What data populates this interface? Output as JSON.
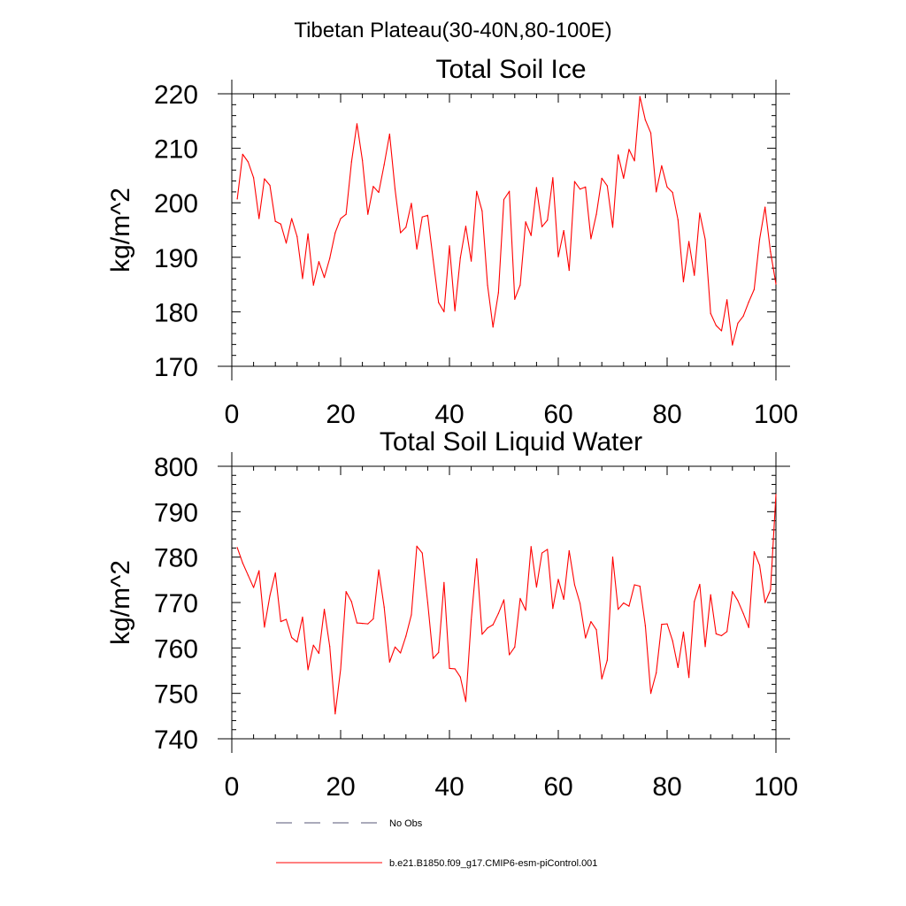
{
  "figure_title": "Tibetan Plateau(30-40N,80-100E)",
  "legend": {
    "placement": "bottom",
    "entries": [
      {
        "label": "No Obs",
        "style": "dashed",
        "color": "#555577"
      },
      {
        "label": "b.e21.B1850.f09_g17.CMIP6-esm-piControl.001",
        "style": "solid",
        "color": "#ff0000"
      }
    ]
  },
  "chart_data": [
    {
      "type": "line",
      "title": "Total Soil Ice",
      "xlabel": "",
      "ylabel": "kg/m^2",
      "xlim": [
        0,
        100
      ],
      "ylim": [
        170,
        220
      ],
      "xticks": [
        0,
        20,
        40,
        60,
        80,
        100
      ],
      "yticks": [
        170,
        180,
        190,
        200,
        210,
        220
      ],
      "grid": false,
      "series": [
        {
          "color": "#ff0000",
          "x": [
            1,
            2,
            3,
            4,
            5,
            6,
            7,
            8,
            9,
            10,
            11,
            12,
            13,
            14,
            15,
            16,
            17,
            18,
            19,
            20,
            21,
            22,
            23,
            24,
            25,
            26,
            27,
            28,
            29,
            30,
            31,
            32,
            33,
            34,
            35,
            36,
            37,
            38,
            39,
            40,
            41,
            42,
            43,
            44,
            45,
            46,
            47,
            48,
            49,
            50,
            51,
            52,
            53,
            54,
            55,
            56,
            57,
            58,
            59,
            60,
            61,
            62,
            63,
            64,
            65,
            66,
            67,
            68,
            69,
            70,
            71,
            72,
            73,
            74,
            75,
            76,
            77,
            78,
            79,
            80,
            81,
            82,
            83,
            84,
            85,
            86,
            87,
            88,
            89,
            90,
            91,
            92,
            93,
            94,
            95,
            96,
            97,
            98,
            99,
            100
          ],
          "values": [
            200.7,
            208.9,
            207.5,
            204.6,
            197.1,
            204.4,
            203.2,
            196.6,
            196.1,
            192.6,
            197.1,
            193.8,
            186.1,
            194.3,
            184.9,
            189.2,
            186.3,
            189.8,
            194.5,
            197.1,
            197.9,
            207.5,
            214.5,
            207.8,
            197.9,
            203.0,
            201.9,
            207.0,
            212.6,
            202.5,
            194.5,
            195.5,
            199.9,
            191.5,
            197.4,
            197.7,
            189.6,
            181.7,
            180.0,
            192.1,
            180.2,
            189.9,
            195.7,
            189.3,
            202.1,
            198.5,
            184.9,
            177.2,
            183.5,
            200.6,
            202.1,
            182.3,
            184.9,
            196.5,
            194.0,
            202.8,
            195.6,
            196.8,
            204.6,
            190.1,
            194.9,
            187.6,
            203.9,
            202.5,
            202.9,
            193.4,
            197.9,
            204.5,
            203.1,
            195.5,
            208.8,
            204.5,
            209.8,
            207.7,
            219.5,
            215.2,
            212.8,
            202.0,
            206.8,
            202.9,
            201.9,
            196.9,
            185.5,
            192.9,
            186.7,
            198.1,
            193.3,
            179.7,
            177.5,
            176.5,
            182.2,
            173.9,
            177.9,
            179.2,
            181.8,
            184.1,
            193.3,
            199.2,
            191.0,
            185.1
          ]
        }
      ]
    },
    {
      "type": "line",
      "title": "Total Soil Liquid Water",
      "xlabel": "",
      "ylabel": "kg/m^2",
      "xlim": [
        0,
        100
      ],
      "ylim": [
        740,
        800
      ],
      "xticks": [
        0,
        20,
        40,
        60,
        80,
        100
      ],
      "yticks": [
        740,
        750,
        760,
        770,
        780,
        790,
        800
      ],
      "grid": false,
      "series": [
        {
          "color": "#ff0000",
          "x": [
            1,
            2,
            3,
            4,
            5,
            6,
            7,
            8,
            9,
            10,
            11,
            12,
            13,
            14,
            15,
            16,
            17,
            18,
            19,
            20,
            21,
            22,
            23,
            24,
            25,
            26,
            27,
            28,
            29,
            30,
            31,
            32,
            33,
            34,
            35,
            36,
            37,
            38,
            39,
            40,
            41,
            42,
            43,
            44,
            45,
            46,
            47,
            48,
            49,
            50,
            51,
            52,
            53,
            54,
            55,
            56,
            57,
            58,
            59,
            60,
            61,
            62,
            63,
            64,
            65,
            66,
            67,
            68,
            69,
            70,
            71,
            72,
            73,
            74,
            75,
            76,
            77,
            78,
            79,
            80,
            81,
            82,
            83,
            84,
            85,
            86,
            87,
            88,
            89,
            90,
            91,
            92,
            93,
            94,
            95,
            96,
            97,
            98,
            99,
            100
          ],
          "values": [
            782.1,
            778.7,
            776.0,
            773.3,
            777.0,
            764.6,
            771.5,
            776.5,
            765.8,
            766.3,
            762.3,
            761.3,
            766.8,
            755.2,
            760.6,
            758.8,
            768.5,
            760.3,
            745.5,
            755.3,
            772.4,
            770.2,
            765.5,
            765.4,
            765.3,
            766.4,
            777.2,
            769.0,
            756.9,
            760.2,
            758.9,
            762.6,
            767.3,
            782.4,
            780.9,
            770.0,
            757.7,
            759.0,
            774.4,
            755.5,
            755.4,
            753.6,
            748.2,
            766.2,
            779.6,
            763.0,
            764.4,
            765.1,
            767.6,
            770.6,
            758.5,
            760.2,
            770.9,
            768.3,
            782.3,
            773.4,
            780.9,
            781.7,
            768.7,
            775.1,
            770.7,
            781.4,
            773.9,
            769.8,
            762.2,
            765.8,
            764.0,
            753.2,
            757.3,
            780.0,
            768.5,
            769.9,
            769.2,
            773.9,
            773.6,
            764.9,
            750.0,
            754.5,
            765.2,
            765.3,
            761.6,
            755.7,
            763.5,
            753.5,
            770.2,
            774.0,
            760.3,
            771.7,
            763.1,
            762.7,
            763.6,
            772.4,
            770.4,
            767.6,
            764.5,
            781.2,
            778.2,
            770.0,
            772.8,
            793.8
          ]
        }
      ]
    }
  ]
}
